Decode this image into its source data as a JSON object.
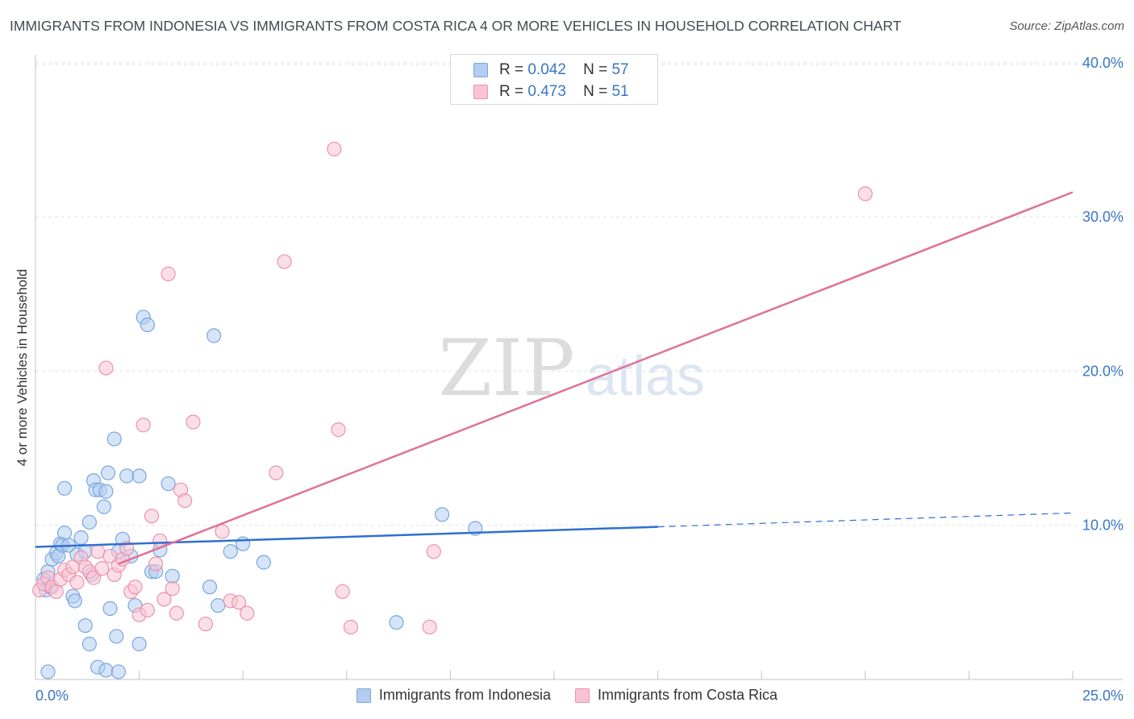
{
  "title": "IMMIGRANTS FROM INDONESIA VS IMMIGRANTS FROM COSTA RICA 4 OR MORE VEHICLES IN HOUSEHOLD CORRELATION CHART",
  "source": "Source: ZipAtlas.com",
  "watermark": {
    "zip": "ZIP",
    "atlas": "atlas"
  },
  "legend_box": {
    "rows": [
      {
        "r_label": "R =",
        "r_value": "0.042",
        "n_label": "N =",
        "n_value": "57",
        "color": "#b3cdf0"
      },
      {
        "r_label": "R =",
        "r_value": "0.473",
        "n_label": "N =",
        "n_value": "51",
        "color": "#f8c4d3"
      }
    ]
  },
  "bottom_legend": [
    {
      "label": "Immigrants from Indonesia",
      "color": "#b3cdf0"
    },
    {
      "label": "Immigrants from Costa Rica",
      "color": "#f8c4d3"
    }
  ],
  "chart_data": {
    "type": "scatter",
    "title": "IMMIGRANTS FROM INDONESIA VS IMMIGRANTS FROM COSTA RICA 4 OR MORE VEHICLES IN HOUSEHOLD CORRELATION CHART",
    "xlabel": "",
    "ylabel": "4 or more Vehicles in Household",
    "xlim": [
      0,
      25
    ],
    "ylim": [
      0,
      40
    ],
    "x_tick_labels": [
      "0.0%",
      "25.0%"
    ],
    "y_ticks": [
      10,
      20,
      30,
      40
    ],
    "y_tick_labels": [
      "10.0%",
      "20.0%",
      "30.0%",
      "40.0%"
    ],
    "grid": true,
    "series": [
      {
        "name": "Immigrants from Indonesia",
        "color": "#7aa6e0",
        "fill": "#b3cdf0",
        "line_color": "#2f6fd0",
        "trend": {
          "x0": 0.0,
          "y0": 8.6,
          "x1": 15.0,
          "y1": 9.9,
          "dash_x_end": 25.0,
          "dash_y_end": 10.8
        },
        "points": [
          [
            0.2,
            6.5
          ],
          [
            0.3,
            7.0
          ],
          [
            0.25,
            5.8
          ],
          [
            0.4,
            7.8
          ],
          [
            0.5,
            8.2
          ],
          [
            0.6,
            8.8
          ],
          [
            0.55,
            8.0
          ],
          [
            0.7,
            9.5
          ],
          [
            0.65,
            8.7
          ],
          [
            0.8,
            8.7
          ],
          [
            0.9,
            5.4
          ],
          [
            0.95,
            5.1
          ],
          [
            0.7,
            12.4
          ],
          [
            1.0,
            8.1
          ],
          [
            1.1,
            9.2
          ],
          [
            1.2,
            8.3
          ],
          [
            1.2,
            3.5
          ],
          [
            1.3,
            10.2
          ],
          [
            1.35,
            6.8
          ],
          [
            1.4,
            12.9
          ],
          [
            1.45,
            12.3
          ],
          [
            1.55,
            12.3
          ],
          [
            1.65,
            11.2
          ],
          [
            1.7,
            12.2
          ],
          [
            1.75,
            13.4
          ],
          [
            1.8,
            4.6
          ],
          [
            1.9,
            15.6
          ],
          [
            1.95,
            2.8
          ],
          [
            2.0,
            8.3
          ],
          [
            2.1,
            9.1
          ],
          [
            2.2,
            13.2
          ],
          [
            2.3,
            8.0
          ],
          [
            2.4,
            4.8
          ],
          [
            2.5,
            13.2
          ],
          [
            2.6,
            23.5
          ],
          [
            2.7,
            23.0
          ],
          [
            2.8,
            7.0
          ],
          [
            2.9,
            7.0
          ],
          [
            3.0,
            8.4
          ],
          [
            3.2,
            12.7
          ],
          [
            3.3,
            6.7
          ],
          [
            4.2,
            6.0
          ],
          [
            4.3,
            22.3
          ],
          [
            4.4,
            4.8
          ],
          [
            4.7,
            8.3
          ],
          [
            5.0,
            8.8
          ],
          [
            5.5,
            7.6
          ],
          [
            8.7,
            3.7
          ],
          [
            9.8,
            10.7
          ],
          [
            10.6,
            9.8
          ],
          [
            1.5,
            0.8
          ],
          [
            1.7,
            0.6
          ],
          [
            2.0,
            0.5
          ],
          [
            0.3,
            0.5
          ],
          [
            1.3,
            2.3
          ],
          [
            2.5,
            2.3
          ],
          [
            0.35,
            6.0
          ]
        ]
      },
      {
        "name": "Immigrants from Costa Rica",
        "color": "#ec92ad",
        "fill": "#f8c4d3",
        "line_color": "#e07098",
        "trend": {
          "x0": 2.0,
          "y0": 7.5,
          "x1": 25.0,
          "y1": 31.6
        },
        "points": [
          [
            0.1,
            5.8
          ],
          [
            0.2,
            6.2
          ],
          [
            0.3,
            6.6
          ],
          [
            0.4,
            6.0
          ],
          [
            0.5,
            5.7
          ],
          [
            0.6,
            6.5
          ],
          [
            0.7,
            7.1
          ],
          [
            0.8,
            6.8
          ],
          [
            0.9,
            7.3
          ],
          [
            1.0,
            6.3
          ],
          [
            1.1,
            7.9
          ],
          [
            1.2,
            7.3
          ],
          [
            1.3,
            7.0
          ],
          [
            1.4,
            6.6
          ],
          [
            1.5,
            8.3
          ],
          [
            1.6,
            7.2
          ],
          [
            1.7,
            20.2
          ],
          [
            1.8,
            8.0
          ],
          [
            1.9,
            6.8
          ],
          [
            2.0,
            7.4
          ],
          [
            2.1,
            7.8
          ],
          [
            2.2,
            8.5
          ],
          [
            2.3,
            5.7
          ],
          [
            2.4,
            6.0
          ],
          [
            2.5,
            4.2
          ],
          [
            2.6,
            16.5
          ],
          [
            2.7,
            4.5
          ],
          [
            2.8,
            10.6
          ],
          [
            2.9,
            7.5
          ],
          [
            3.0,
            9.0
          ],
          [
            3.1,
            5.2
          ],
          [
            3.2,
            26.3
          ],
          [
            3.3,
            5.9
          ],
          [
            3.4,
            4.3
          ],
          [
            3.5,
            12.3
          ],
          [
            3.6,
            11.6
          ],
          [
            3.8,
            16.7
          ],
          [
            4.1,
            3.6
          ],
          [
            4.5,
            9.6
          ],
          [
            4.7,
            5.1
          ],
          [
            4.9,
            5.0
          ],
          [
            5.1,
            4.3
          ],
          [
            5.8,
            13.4
          ],
          [
            6.0,
            27.1
          ],
          [
            7.3,
            16.2
          ],
          [
            7.4,
            5.7
          ],
          [
            7.6,
            3.4
          ],
          [
            7.2,
            34.4
          ],
          [
            9.6,
            8.3
          ],
          [
            9.5,
            3.4
          ],
          [
            20.0,
            31.5
          ]
        ]
      }
    ]
  }
}
